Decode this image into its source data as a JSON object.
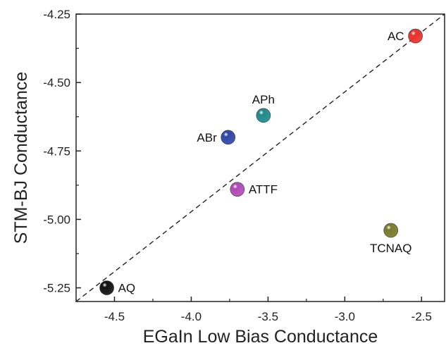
{
  "chart_data": {
    "type": "scatter",
    "title": "",
    "xlabel": "EGaIn Low Bias Conductance",
    "ylabel": "STM-BJ Conductance",
    "xlim": [
      -4.75,
      -2.35
    ],
    "ylim": [
      -5.3,
      -4.25
    ],
    "x_ticks": [
      {
        "value": -4.5,
        "label": "-4.5"
      },
      {
        "value": -4.0,
        "label": "-4.0"
      },
      {
        "value": -3.5,
        "label": "-3.5"
      },
      {
        "value": -3.0,
        "label": "-3.0"
      },
      {
        "value": -2.5,
        "label": "-2.5"
      }
    ],
    "y_ticks": [
      {
        "value": -4.25,
        "label": "-4.25"
      },
      {
        "value": -4.5,
        "label": "-4.50"
      },
      {
        "value": -4.75,
        "label": "-4.75"
      },
      {
        "value": -5.0,
        "label": "-5.00"
      },
      {
        "value": -5.25,
        "label": "-5.25"
      }
    ],
    "reference_line": {
      "style": "dashed",
      "from": [
        -4.75,
        -5.3
      ],
      "to": [
        -2.35,
        -4.25
      ]
    },
    "points": [
      {
        "label": "AC",
        "x": -2.54,
        "y": -4.33,
        "color": "#e8312a",
        "label_side": "left"
      },
      {
        "label": "APh",
        "x": -3.53,
        "y": -4.62,
        "color": "#1f8a8a",
        "label_side": "top"
      },
      {
        "label": "ABr",
        "x": -3.76,
        "y": -4.7,
        "color": "#2e46a8",
        "label_side": "left"
      },
      {
        "label": "ATTF",
        "x": -3.7,
        "y": -4.89,
        "color": "#b04ab8",
        "label_side": "right"
      },
      {
        "label": "TCNAQ",
        "x": -2.7,
        "y": -5.04,
        "color": "#7a7a2a",
        "label_side": "bottom"
      },
      {
        "label": "AQ",
        "x": -4.55,
        "y": -5.25,
        "color": "#111111",
        "label_side": "right"
      }
    ],
    "grid": false,
    "legend": "none"
  }
}
